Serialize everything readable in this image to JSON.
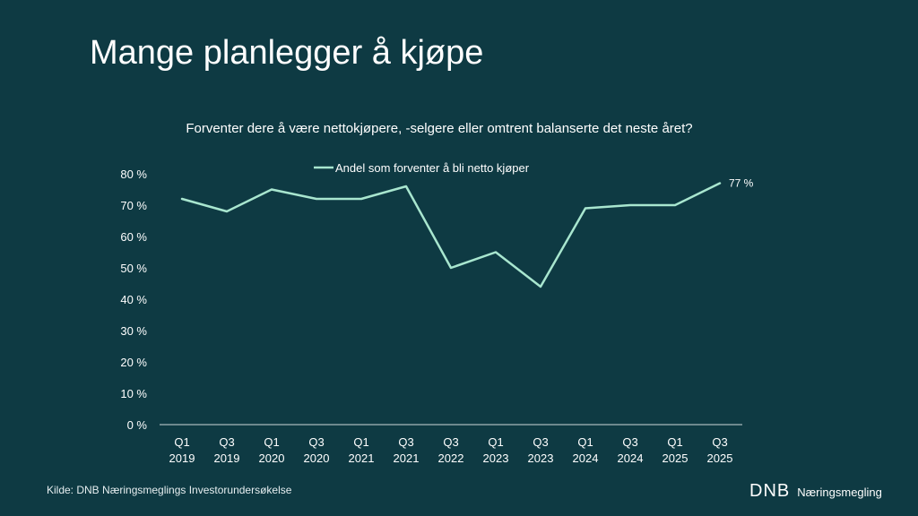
{
  "slide": {
    "title": "Mange planlegger å kjøpe",
    "source": "Kilde: DNB Næringsmeglings Investorundersøkelse",
    "logo_mark": "DNB",
    "logo_text": "Næringsmegling"
  },
  "colors": {
    "background": "#0e3a43",
    "line": "#a8e6cf",
    "text": "#ffffff",
    "axis": "#cfd8da"
  },
  "chart_data": {
    "type": "line",
    "title": "Forventer dere å være nettokjøpere, -selgere eller omtrent balanserte det neste året?",
    "xlabel": "",
    "ylabel": "",
    "ylim": [
      0,
      80
    ],
    "yticks": [
      0,
      10,
      20,
      30,
      40,
      50,
      60,
      70,
      80
    ],
    "ytick_suffix": " %",
    "categories": [
      [
        "Q1",
        "2019"
      ],
      [
        "Q3",
        "2019"
      ],
      [
        "Q1",
        "2020"
      ],
      [
        "Q3",
        "2020"
      ],
      [
        "Q1",
        "2021"
      ],
      [
        "Q3",
        "2021"
      ],
      [
        "Q3",
        "2022"
      ],
      [
        "Q1",
        "2023"
      ],
      [
        "Q3",
        "2023"
      ],
      [
        "Q1",
        "2024"
      ],
      [
        "Q3",
        "2024"
      ],
      [
        "Q1",
        "2025"
      ],
      [
        "Q3",
        "2025"
      ]
    ],
    "series": [
      {
        "name": "Andel som forventer å bli netto kjøper",
        "values": [
          72,
          68,
          75,
          72,
          72,
          76,
          50,
          55,
          44,
          69,
          70,
          70,
          77
        ]
      }
    ],
    "end_label": "77 %",
    "legend": "top-center",
    "grid": false
  }
}
